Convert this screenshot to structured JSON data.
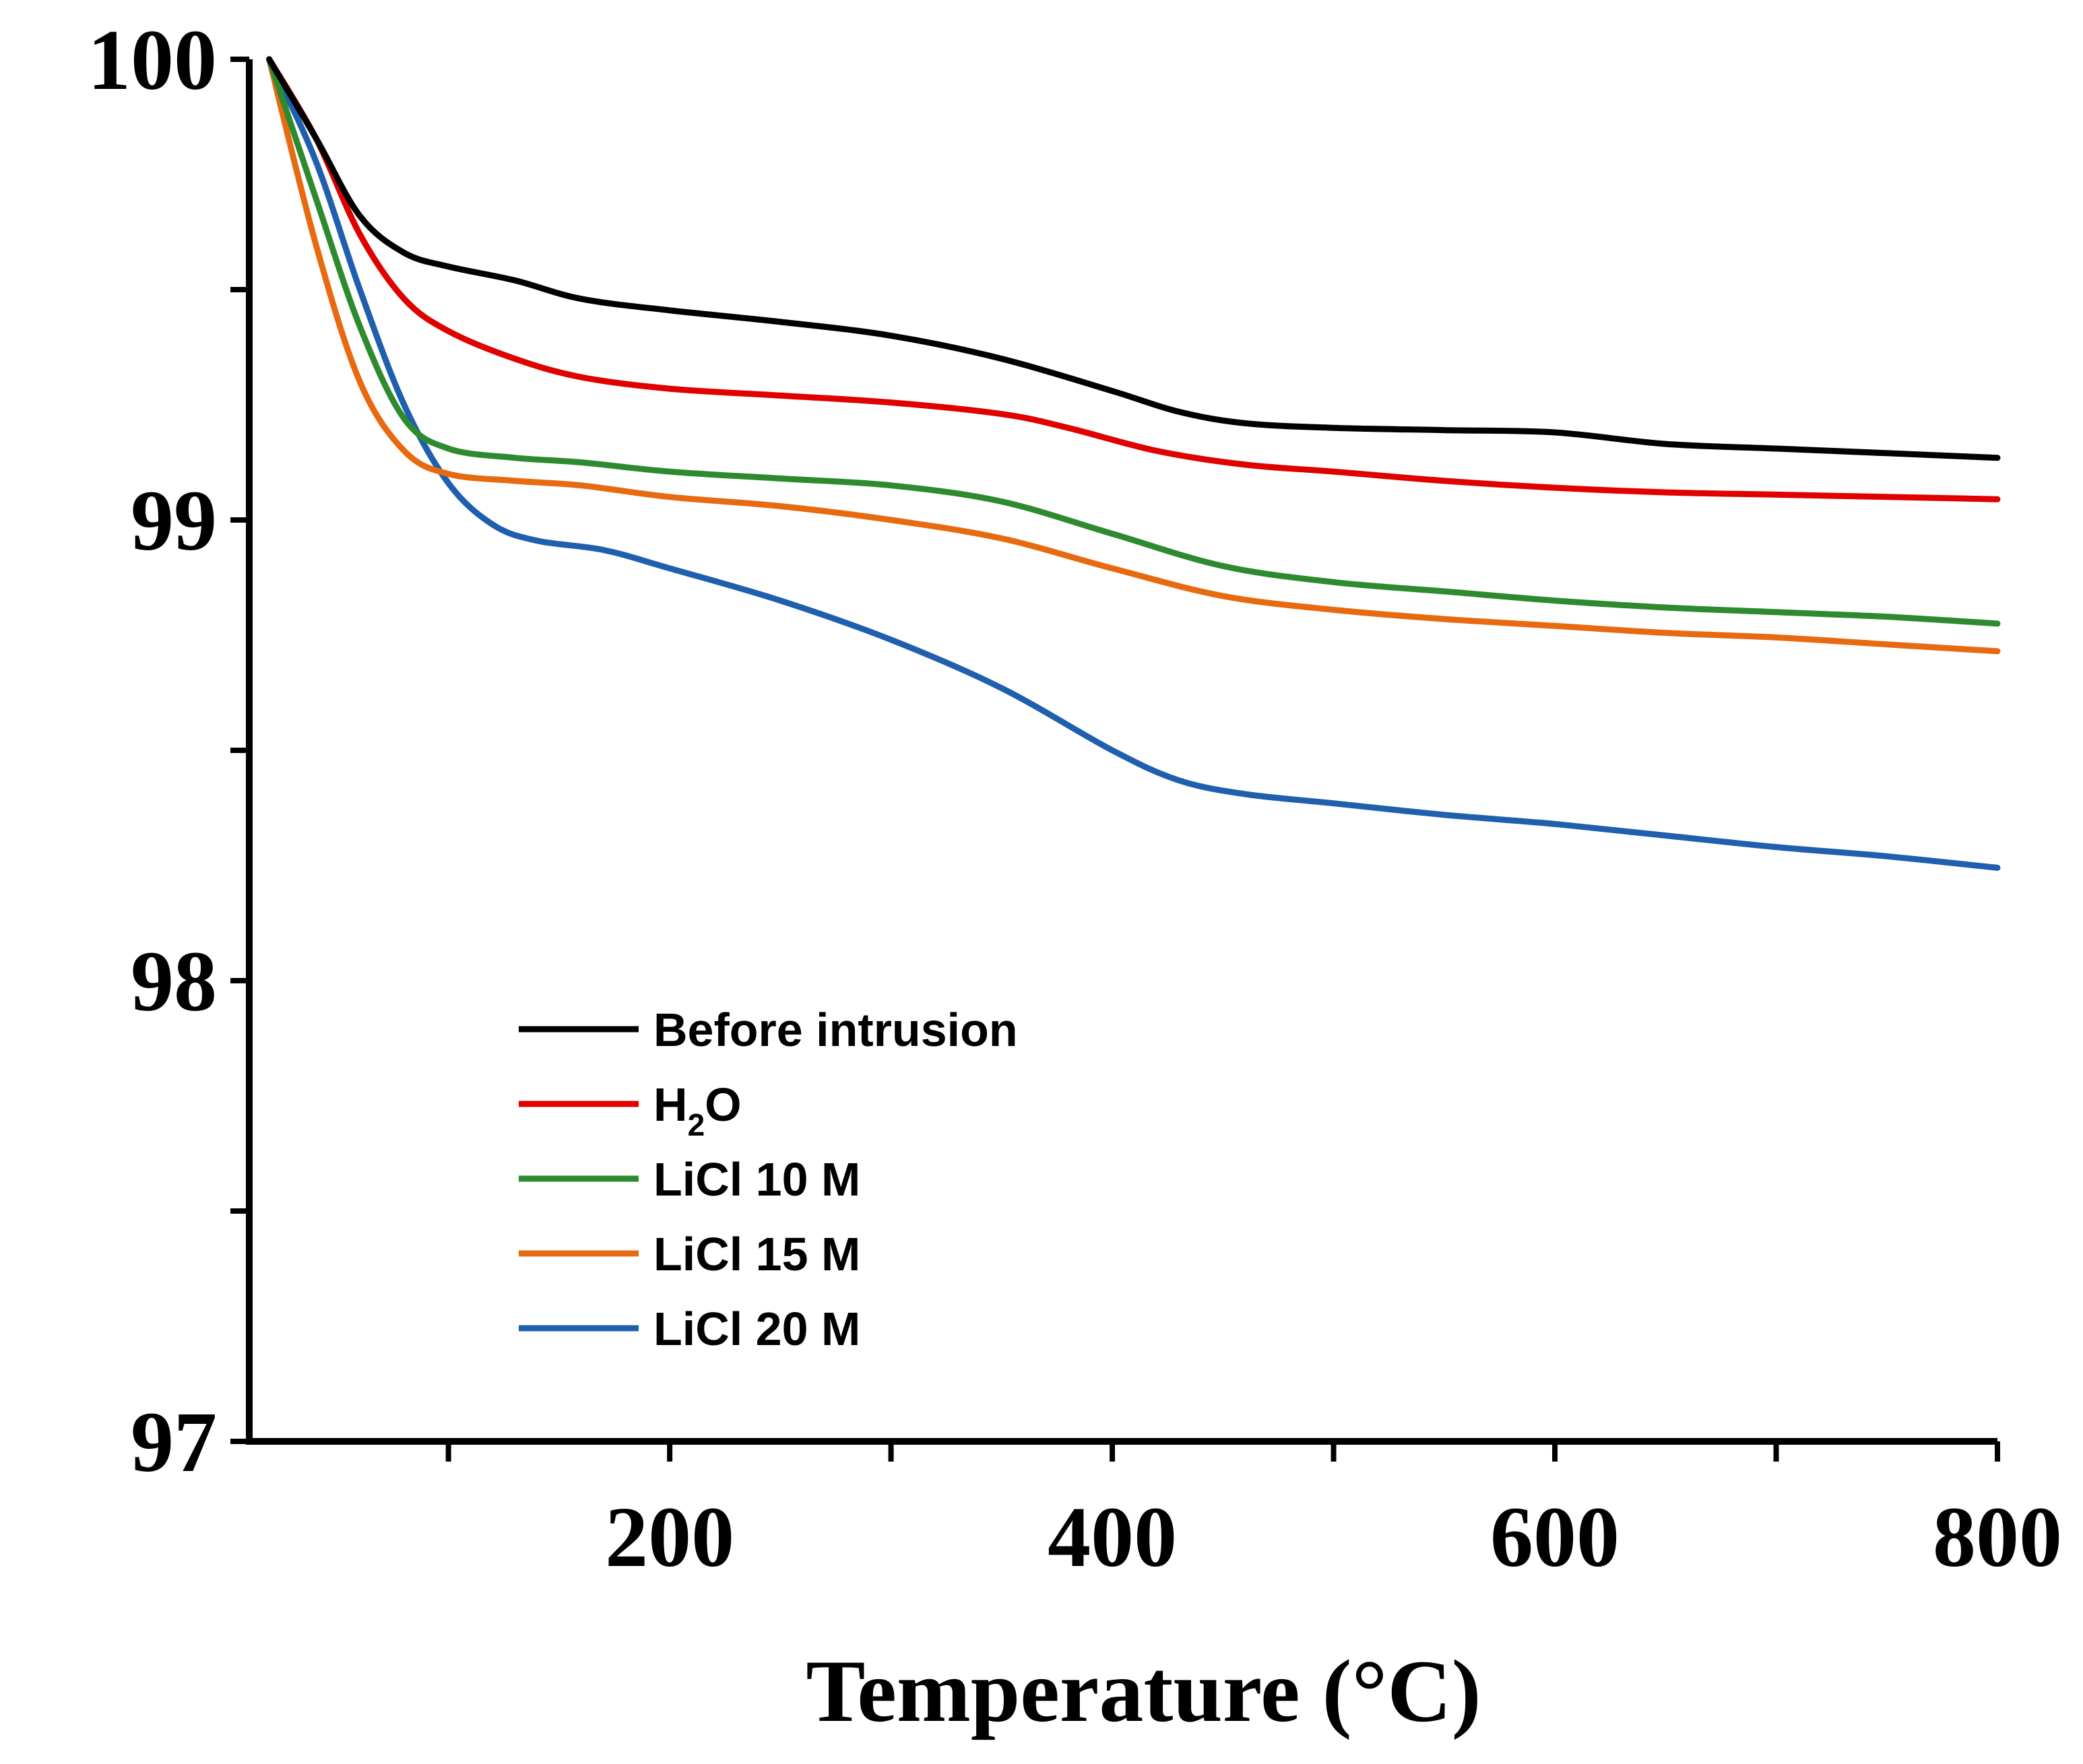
{
  "chart_data": {
    "type": "line",
    "title": "",
    "xlabel": "Temperature (°C)",
    "ylabel": "",
    "xlim": [
      10,
      800
    ],
    "ylim": [
      97,
      100
    ],
    "x_ticks": [
      200,
      400,
      600,
      800
    ],
    "y_ticks": [
      97,
      98,
      99,
      100
    ],
    "grid": false,
    "legend_position": "lower-left",
    "series": [
      {
        "name": "Before intrusion",
        "color": "#000000",
        "points": [
          [
            19,
            100
          ],
          [
            40,
            99.83
          ],
          [
            60,
            99.66
          ],
          [
            80,
            99.58
          ],
          [
            100,
            99.55
          ],
          [
            130,
            99.52
          ],
          [
            160,
            99.48
          ],
          [
            200,
            99.455
          ],
          [
            250,
            99.43
          ],
          [
            300,
            99.4
          ],
          [
            350,
            99.35
          ],
          [
            400,
            99.28
          ],
          [
            430,
            99.235
          ],
          [
            460,
            99.21
          ],
          [
            500,
            99.2
          ],
          [
            550,
            99.195
          ],
          [
            600,
            99.19
          ],
          [
            650,
            99.165
          ],
          [
            700,
            99.155
          ],
          [
            750,
            99.145
          ],
          [
            800,
            99.135
          ]
        ]
      },
      {
        "name": "H2O",
        "name_main": "H",
        "name_sub": "2",
        "name_tail": "O",
        "color": "#e00000",
        "points": [
          [
            19,
            100
          ],
          [
            40,
            99.83
          ],
          [
            60,
            99.62
          ],
          [
            80,
            99.48
          ],
          [
            100,
            99.41
          ],
          [
            130,
            99.35
          ],
          [
            160,
            99.31
          ],
          [
            200,
            99.285
          ],
          [
            250,
            99.27
          ],
          [
            300,
            99.255
          ],
          [
            350,
            99.23
          ],
          [
            380,
            99.2
          ],
          [
            420,
            99.15
          ],
          [
            460,
            99.12
          ],
          [
            500,
            99.105
          ],
          [
            550,
            99.085
          ],
          [
            600,
            99.07
          ],
          [
            650,
            99.06
          ],
          [
            700,
            99.055
          ],
          [
            750,
            99.05
          ],
          [
            800,
            99.045
          ]
        ]
      },
      {
        "name": "LiCl 10 M",
        "color": "#2e8a2e",
        "points": [
          [
            19,
            100
          ],
          [
            40,
            99.7
          ],
          [
            60,
            99.42
          ],
          [
            80,
            99.22
          ],
          [
            100,
            99.155
          ],
          [
            130,
            99.135
          ],
          [
            160,
            99.125
          ],
          [
            200,
            99.105
          ],
          [
            250,
            99.09
          ],
          [
            300,
            99.075
          ],
          [
            350,
            99.04
          ],
          [
            400,
            98.97
          ],
          [
            450,
            98.9
          ],
          [
            500,
            98.865
          ],
          [
            550,
            98.845
          ],
          [
            600,
            98.825
          ],
          [
            650,
            98.81
          ],
          [
            700,
            98.8
          ],
          [
            750,
            98.79
          ],
          [
            800,
            98.775
          ]
        ]
      },
      {
        "name": "LiCl 15 M",
        "color": "#e86a10",
        "points": [
          [
            19,
            100
          ],
          [
            40,
            99.6
          ],
          [
            60,
            99.3
          ],
          [
            80,
            99.15
          ],
          [
            100,
            99.1
          ],
          [
            130,
            99.085
          ],
          [
            160,
            99.075
          ],
          [
            200,
            99.05
          ],
          [
            250,
            99.03
          ],
          [
            300,
            99.0
          ],
          [
            350,
            98.96
          ],
          [
            400,
            98.895
          ],
          [
            450,
            98.835
          ],
          [
            500,
            98.805
          ],
          [
            550,
            98.785
          ],
          [
            600,
            98.77
          ],
          [
            650,
            98.755
          ],
          [
            700,
            98.745
          ],
          [
            750,
            98.73
          ],
          [
            800,
            98.715
          ]
        ]
      },
      {
        "name": "LiCl 20 M",
        "color": "#1f5fae",
        "points": [
          [
            19,
            100
          ],
          [
            40,
            99.78
          ],
          [
            60,
            99.5
          ],
          [
            80,
            99.25
          ],
          [
            100,
            99.08
          ],
          [
            120,
            98.99
          ],
          [
            140,
            98.955
          ],
          [
            170,
            98.935
          ],
          [
            200,
            98.895
          ],
          [
            250,
            98.825
          ],
          [
            300,
            98.74
          ],
          [
            350,
            98.635
          ],
          [
            400,
            98.5
          ],
          [
            430,
            98.435
          ],
          [
            460,
            98.405
          ],
          [
            500,
            98.385
          ],
          [
            550,
            98.36
          ],
          [
            600,
            98.34
          ],
          [
            650,
            98.315
          ],
          [
            700,
            98.29
          ],
          [
            750,
            98.27
          ],
          [
            800,
            98.245
          ]
        ]
      }
    ]
  }
}
